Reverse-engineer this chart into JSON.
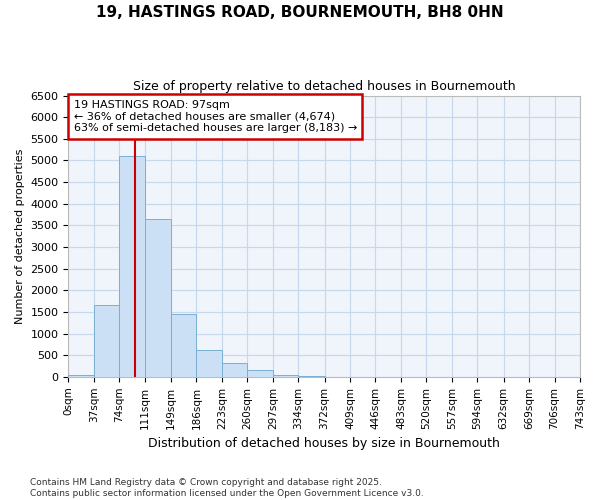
{
  "title_line1": "19, HASTINGS ROAD, BOURNEMOUTH, BH8 0HN",
  "title_line2": "Size of property relative to detached houses in Bournemouth",
  "xlabel": "Distribution of detached houses by size in Bournemouth",
  "ylabel": "Number of detached properties",
  "bin_edges": [
    0,
    37,
    74,
    111,
    149,
    186,
    223,
    260,
    297,
    334,
    372,
    409,
    446,
    483,
    520,
    557,
    594,
    632,
    669,
    706,
    743
  ],
  "bar_heights": [
    50,
    1650,
    5100,
    3650,
    1450,
    620,
    330,
    160,
    50,
    30,
    0,
    0,
    0,
    0,
    0,
    0,
    0,
    0,
    0,
    0
  ],
  "bar_color": "#cce0f5",
  "bar_edge_color": "#7aafd4",
  "grid_color": "#c8d8ec",
  "background_color": "#ffffff",
  "plot_bg_color": "#f0f4fb",
  "property_line_x": 97,
  "annotation_title": "19 HASTINGS ROAD: 97sqm",
  "annotation_line2": "← 36% of detached houses are smaller (4,674)",
  "annotation_line3": "63% of semi-detached houses are larger (8,183) →",
  "annotation_box_color": "#ffffff",
  "annotation_border_color": "#cc0000",
  "red_line_color": "#cc0000",
  "ylim": [
    0,
    6500
  ],
  "yticks": [
    0,
    500,
    1000,
    1500,
    2000,
    2500,
    3000,
    3500,
    4000,
    4500,
    5000,
    5500,
    6000,
    6500
  ],
  "footnote_line1": "Contains HM Land Registry data © Crown copyright and database right 2025.",
  "footnote_line2": "Contains public sector information licensed under the Open Government Licence v3.0."
}
